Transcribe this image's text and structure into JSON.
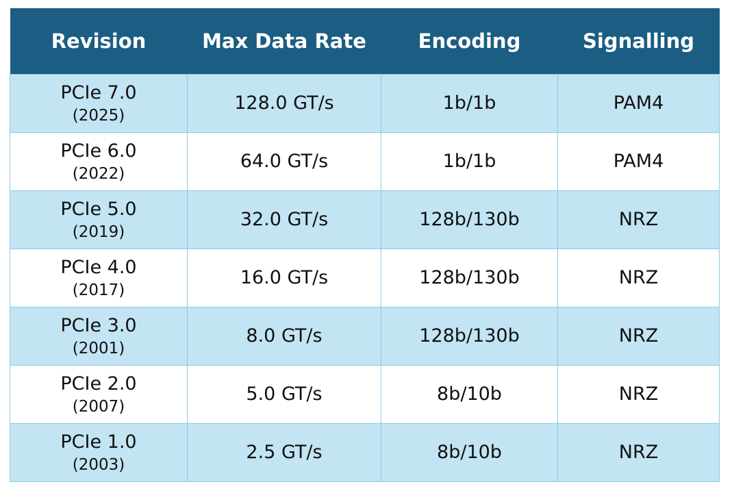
{
  "colors": {
    "header_bg": "#1b5d83",
    "header_text": "#ffffff",
    "row_shade": "#c2e4f3",
    "row_plain": "#ffffff",
    "grid_line": "#8ccbe6"
  },
  "table": {
    "headers": [
      "Revision",
      "Max Data Rate",
      "Encoding",
      "Signalling"
    ],
    "rows": [
      {
        "revision": "PCIe 7.0",
        "year": "(2025)",
        "rate": "128.0 GT/s",
        "encoding": "1b/1b",
        "signalling": "PAM4"
      },
      {
        "revision": "PCIe 6.0",
        "year": "(2022)",
        "rate": "64.0 GT/s",
        "encoding": "1b/1b",
        "signalling": "PAM4"
      },
      {
        "revision": "PCIe 5.0",
        "year": "(2019)",
        "rate": "32.0 GT/s",
        "encoding": "128b/130b",
        "signalling": "NRZ"
      },
      {
        "revision": "PCIe 4.0",
        "year": "(2017)",
        "rate": "16.0 GT/s",
        "encoding": "128b/130b",
        "signalling": "NRZ"
      },
      {
        "revision": "PCIe 3.0",
        "year": "(2001)",
        "rate": "8.0 GT/s",
        "encoding": "128b/130b",
        "signalling": "NRZ"
      },
      {
        "revision": "PCIe 2.0",
        "year": "(2007)",
        "rate": "5.0 GT/s",
        "encoding": "8b/10b",
        "signalling": "NRZ"
      },
      {
        "revision": "PCIe 1.0",
        "year": "(2003)",
        "rate": "2.5 GT/s",
        "encoding": "8b/10b",
        "signalling": "NRZ"
      }
    ]
  }
}
